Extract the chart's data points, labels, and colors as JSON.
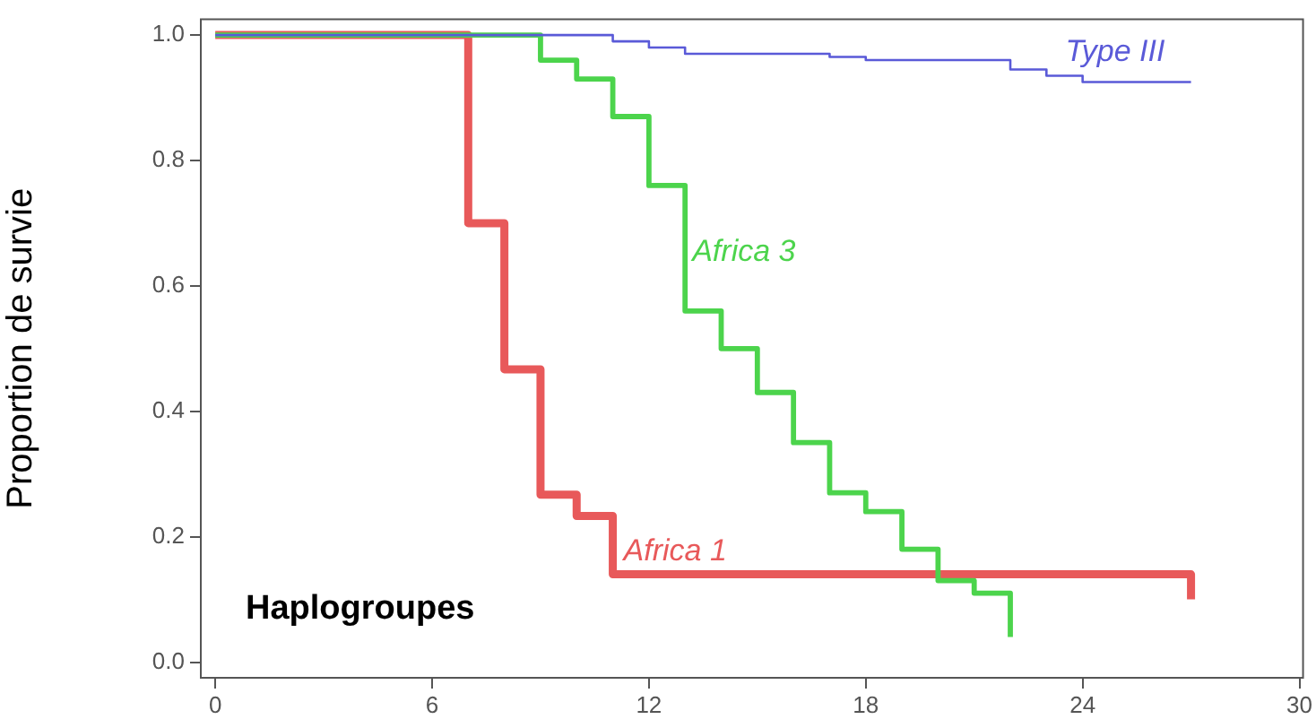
{
  "chart_data": {
    "type": "step",
    "ylabel": "Proportion de survie",
    "xlim": [
      -0.4,
      30.1
    ],
    "xticks": [
      0,
      6,
      12,
      18,
      24,
      30
    ],
    "ylim": [
      -0.025,
      1.025
    ],
    "yticks": [
      {
        "value": 0,
        "label": "0.0"
      },
      {
        "value": 0.2,
        "label": "0.2"
      },
      {
        "value": 0.4,
        "label": "0.4"
      },
      {
        "value": 0.6,
        "label": "0.6"
      },
      {
        "value": 0.8,
        "label": "0.8"
      },
      {
        "value": 1,
        "label": "1.0"
      }
    ],
    "grid": false,
    "legend": false,
    "marker": "none",
    "line_style": "solid",
    "annotations": [
      "Haplogroupes"
    ],
    "series": [
      {
        "name": "Type III",
        "color": "#5a5ad8",
        "x": [
          0,
          11,
          12,
          13,
          17,
          18,
          22,
          23,
          24,
          27
        ],
        "values": [
          1,
          0.99,
          0.98,
          0.97,
          0.965,
          0.96,
          0.945,
          0.935,
          0.925,
          0.925
        ]
      },
      {
        "name": "Africa 3",
        "color": "#4cd44c",
        "x": [
          0,
          9,
          10,
          11,
          12,
          13,
          14,
          15,
          16,
          17,
          18,
          19,
          20,
          21,
          22
        ],
        "values": [
          1,
          0.96,
          0.93,
          0.87,
          0.76,
          0.56,
          0.5,
          0.43,
          0.35,
          0.27,
          0.24,
          0.18,
          0.13,
          0.11,
          0.04
        ]
      },
      {
        "name": "Africa 1",
        "color": "#e8595a",
        "x": [
          0,
          7,
          8,
          9,
          10,
          11,
          27
        ],
        "values": [
          1,
          0.7,
          0.467,
          0.267,
          0.233,
          0.14,
          0.1
        ]
      }
    ]
  }
}
